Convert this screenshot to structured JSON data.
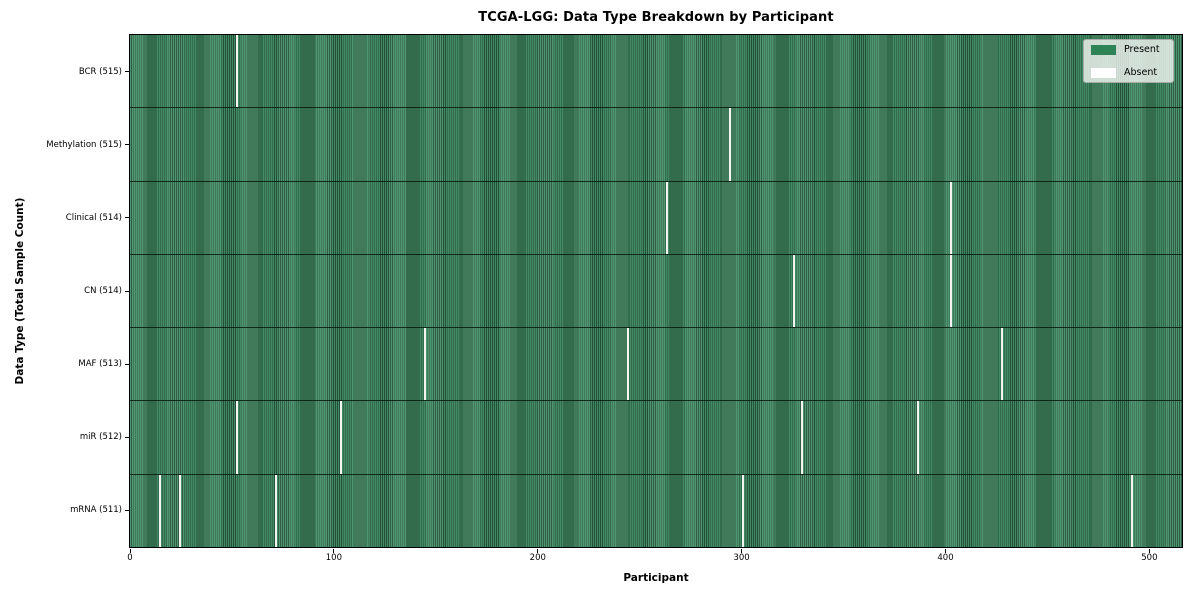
{
  "chart_data": {
    "type": "heatmap",
    "title": "TCGA-LGG: Data Type Breakdown by Participant",
    "xlabel": "Participant",
    "ylabel": "Data Type (Total Sample Count)",
    "x_ticks": [
      0,
      100,
      200,
      300,
      400,
      500
    ],
    "x_range": [
      0,
      516
    ],
    "total_participants": 516,
    "grid": false,
    "legend_position": "upper right",
    "legend": [
      {
        "label": "Present",
        "color": "#2e8457"
      },
      {
        "label": "Absent",
        "color": "#ffffff"
      }
    ],
    "rows": [
      {
        "label": "BCR (515)",
        "present_count": 515,
        "absent_participants": [
          52
        ]
      },
      {
        "label": "Methylation (515)",
        "present_count": 515,
        "absent_participants": [
          294
        ]
      },
      {
        "label": "Clinical (514)",
        "present_count": 514,
        "absent_participants": [
          263,
          402
        ]
      },
      {
        "label": "CN (514)",
        "present_count": 514,
        "absent_participants": [
          325,
          402
        ]
      },
      {
        "label": "MAF (513)",
        "present_count": 513,
        "absent_participants": [
          144,
          244,
          427
        ]
      },
      {
        "label": "miR (512)",
        "present_count": 512,
        "absent_participants": [
          52,
          103,
          329,
          386
        ]
      },
      {
        "label": "mRNA (511)",
        "present_count": 511,
        "absent_participants": [
          14,
          24,
          71,
          300,
          491
        ]
      }
    ],
    "colors": {
      "present_fill": "#2e8457",
      "present_edge": "#245338",
      "absent_fill": "#f4f5f0",
      "row_separator": "#0a140a",
      "legend_background": "#f2f4f0"
    }
  }
}
